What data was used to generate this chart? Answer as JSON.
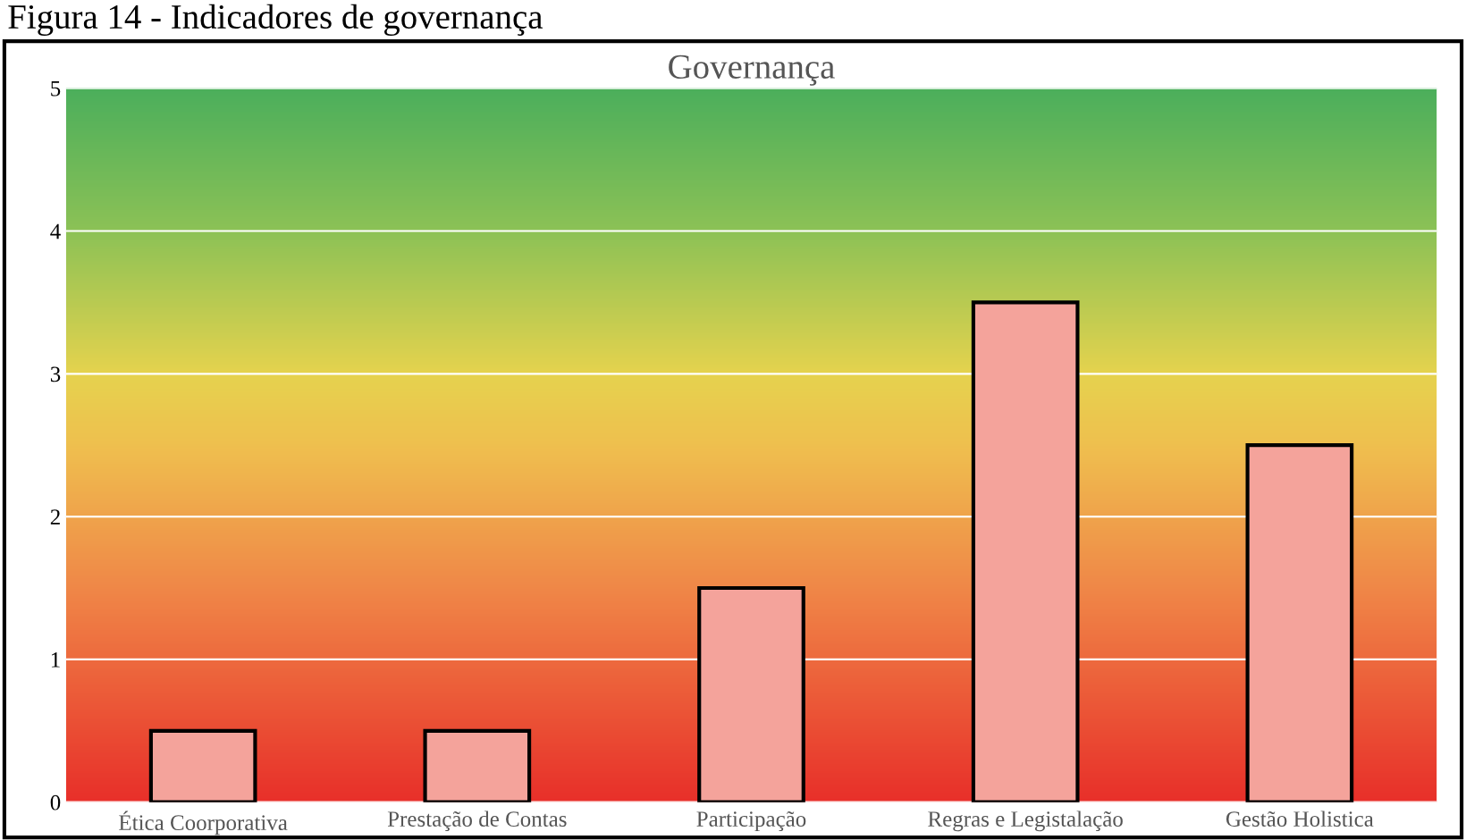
{
  "chart_data": {
    "type": "bar",
    "title": "Governança",
    "annotations": [
      "Figura 14 - Indicadores de governança"
    ],
    "categories": [
      "Ética Coorporativa",
      "Prestação de Contas",
      "Participação",
      "Regras e Legistalação",
      "Gestão Holistica"
    ],
    "values": [
      0.5,
      0.5,
      1.5,
      3.5,
      2.5
    ],
    "color": "#f4a39b",
    "ylim": [
      0,
      5
    ],
    "yticks": [
      0,
      1,
      2,
      3,
      4,
      5
    ],
    "grid": "y",
    "legend": false
  }
}
